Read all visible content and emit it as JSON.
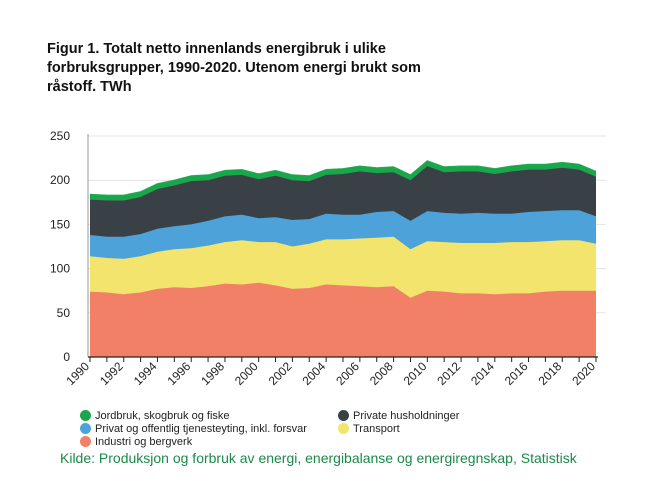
{
  "title_lines": [
    "Figur 1. Totalt netto innenlands energibruk i ulike",
    "forbruksgrupper, 1990-2020. Utenom energi brukt som",
    "råstoff. TWh"
  ],
  "source": "Kilde: Produksjon og forbruk av energi, energibalanse og energiregnskap, Statistisk",
  "chart_data": {
    "type": "area",
    "stacked": true,
    "title": "Figur 1. Totalt netto innenlands energibruk i ulike forbruksgrupper, 1990-2020. Utenom energi brukt som råstoff. TWh",
    "ylabel": "TWh",
    "xlabel": "",
    "ylim": [
      0,
      250
    ],
    "yticks": [
      0,
      50,
      100,
      150,
      200,
      250
    ],
    "xticks": [
      1990,
      1992,
      1994,
      1996,
      1998,
      2000,
      2002,
      2004,
      2006,
      2008,
      2010,
      2012,
      2014,
      2016,
      2018,
      2020
    ],
    "grid": true,
    "x": [
      1990,
      1991,
      1992,
      1993,
      1994,
      1995,
      1996,
      1997,
      1998,
      1999,
      2000,
      2001,
      2002,
      2003,
      2004,
      2005,
      2006,
      2007,
      2008,
      2009,
      2010,
      2011,
      2012,
      2013,
      2014,
      2015,
      2016,
      2017,
      2018,
      2019,
      2020
    ],
    "series": [
      {
        "name": "Industri og bergverk",
        "color": "#f28066",
        "values": [
          74,
          73,
          71,
          73,
          77,
          79,
          78,
          80,
          83,
          82,
          84,
          81,
          77,
          78,
          82,
          81,
          80,
          79,
          80,
          67,
          75,
          74,
          72,
          72,
          71,
          72,
          72,
          74,
          75,
          75,
          75
        ]
      },
      {
        "name": "Transport",
        "color": "#f2e46d",
        "values": [
          40,
          39,
          40,
          41,
          42,
          43,
          45,
          46,
          47,
          50,
          46,
          49,
          48,
          50,
          51,
          52,
          54,
          56,
          56,
          55,
          56,
          56,
          57,
          57,
          58,
          58,
          58,
          57,
          57,
          57,
          53
        ]
      },
      {
        "name": "Privat og offentlig tjenesteyting, inkl. forsvar",
        "color": "#4da3d9",
        "values": [
          24,
          24,
          25,
          25,
          26,
          26,
          27,
          28,
          29,
          29,
          27,
          28,
          30,
          28,
          29,
          28,
          27,
          29,
          29,
          32,
          34,
          33,
          33,
          34,
          33,
          32,
          34,
          34,
          34,
          34,
          31
        ]
      },
      {
        "name": "Private husholdninger",
        "color": "#3a4146",
        "values": [
          40,
          41,
          41,
          42,
          45,
          46,
          49,
          46,
          46,
          45,
          44,
          47,
          45,
          43,
          44,
          46,
          49,
          44,
          44,
          46,
          51,
          46,
          48,
          47,
          45,
          48,
          48,
          47,
          48,
          46,
          45
        ]
      },
      {
        "name": "Jordbruk, skogbruk og fiske",
        "color": "#1aa64a",
        "values": [
          6,
          6,
          6,
          6,
          6,
          6,
          6,
          6,
          6,
          6,
          6,
          6,
          6,
          6,
          6,
          6,
          6,
          6,
          6,
          6,
          6,
          6,
          6,
          6,
          6,
          6,
          6,
          6,
          6,
          6,
          6
        ]
      }
    ],
    "legend": {
      "placement": "bottom",
      "order": [
        "Jordbruk, skogbruk og fiske",
        "Private husholdninger",
        "Privat og offentlig tjenesteyting, inkl. forsvar",
        "Transport",
        "Industri og bergverk"
      ]
    }
  }
}
